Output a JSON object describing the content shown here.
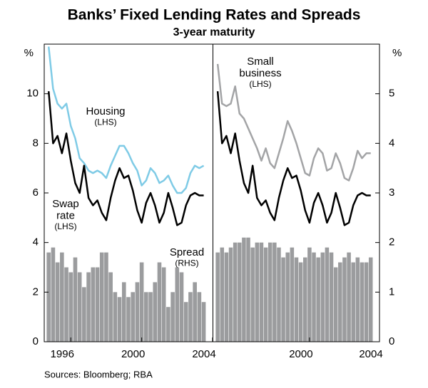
{
  "title": "Banks’ Fixed Lending Rates and Spreads",
  "subtitle": "3-year maturity",
  "source": "Sources: Bloomberg; RBA",
  "chart_data": [
    {
      "type": "line",
      "x": [
        1994.75,
        1995,
        1995.25,
        1995.5,
        1995.75,
        1996,
        1996.25,
        1996.5,
        1996.75,
        1997,
        1997.25,
        1997.5,
        1997.75,
        1998,
        1998.25,
        1998.5,
        1998.75,
        1999,
        1999.25,
        1999.5,
        1999.75,
        2000,
        2000.25,
        2000.5,
        2000.75,
        2001,
        2001.25,
        2001.5,
        2001.75,
        2002,
        2002.25,
        2002.5,
        2002.75,
        2003,
        2003.25,
        2003.5
      ],
      "xlim": [
        1994.5,
        2004
      ],
      "xticks": [
        1996,
        2000,
        2004
      ],
      "ylim": [
        0,
        12
      ],
      "yticks": [
        0,
        2,
        4,
        6,
        8,
        10
      ],
      "ylabel": "%",
      "y2lim": [
        0,
        6
      ],
      "series": [
        {
          "type": "bar",
          "axis": "y2",
          "label": [
            "Spread",
            "(RHS)"
          ],
          "color": "#9b9c9e",
          "values": [
            1.8,
            1.9,
            1.6,
            1.8,
            1.5,
            1.4,
            1.7,
            1.4,
            1.1,
            1.4,
            1.5,
            1.5,
            1.8,
            1.8,
            1.4,
            1.0,
            0.9,
            1.2,
            0.9,
            1.0,
            1.2,
            1.6,
            1.0,
            1.0,
            1.2,
            1.6,
            1.5,
            0.7,
            1.0,
            1.5,
            1.4,
            0.8,
            1.0,
            1.2,
            1.0,
            0.8
          ]
        },
        {
          "type": "line",
          "label": [
            "Housing",
            "(LHS)"
          ],
          "color": "#7fcbe6",
          "values": [
            11.9,
            10.2,
            9.6,
            9.4,
            9.6,
            8.7,
            8.2,
            7.4,
            7.2,
            6.9,
            6.8,
            6.9,
            6.8,
            6.6,
            7.1,
            7.5,
            7.9,
            7.9,
            7.6,
            7.2,
            6.9,
            6.3,
            6.5,
            7.0,
            6.8,
            6.4,
            6.5,
            6.7,
            6.3,
            6.0,
            6.0,
            6.2,
            6.8,
            7.1,
            7.0,
            7.1
          ]
        },
        {
          "type": "line",
          "label": [
            "Swap",
            "rate",
            "(LHS)"
          ],
          "color": "#000000",
          "values": [
            10.1,
            8.0,
            8.3,
            7.6,
            8.4,
            7.3,
            6.4,
            6.0,
            7.1,
            5.8,
            5.5,
            5.7,
            5.2,
            4.9,
            5.8,
            6.5,
            7.0,
            6.6,
            6.7,
            6.1,
            5.3,
            4.8,
            5.6,
            6.0,
            5.5,
            4.8,
            5.2,
            6.0,
            5.4,
            4.7,
            4.8,
            5.5,
            5.9,
            6.0,
            5.9,
            5.9
          ]
        }
      ]
    },
    {
      "type": "line",
      "x": [
        1994.75,
        1995,
        1995.25,
        1995.5,
        1995.75,
        1996,
        1996.25,
        1996.5,
        1996.75,
        1997,
        1997.25,
        1997.5,
        1997.75,
        1998,
        1998.25,
        1998.5,
        1998.75,
        1999,
        1999.25,
        1999.5,
        1999.75,
        2000,
        2000.25,
        2000.5,
        2000.75,
        2001,
        2001.25,
        2001.5,
        2001.75,
        2002,
        2002.25,
        2002.5,
        2002.75,
        2003,
        2003.25,
        2003.5
      ],
      "xlim": [
        1994.5,
        2004
      ],
      "xticks": [
        2000,
        2004
      ],
      "ylim": [
        0,
        12
      ],
      "y2lim": [
        0,
        6
      ],
      "y2ticks": [
        0,
        1,
        2,
        3,
        4,
        5
      ],
      "y2label": "%",
      "series": [
        {
          "type": "bar",
          "axis": "y2",
          "color": "#9b9c9e",
          "values": [
            1.8,
            1.9,
            1.8,
            1.9,
            2.0,
            2.0,
            2.1,
            2.1,
            1.9,
            2.0,
            2.0,
            1.9,
            2.0,
            2.0,
            1.9,
            1.7,
            1.8,
            1.9,
            1.7,
            1.6,
            1.7,
            1.9,
            1.8,
            1.7,
            1.8,
            1.9,
            1.8,
            1.5,
            1.6,
            1.7,
            1.8,
            1.6,
            1.7,
            1.6,
            1.6,
            1.7
          ]
        },
        {
          "type": "line",
          "label": [
            "Small",
            "business",
            "(LHS)"
          ],
          "color": "#a3a4a6",
          "values": [
            11.2,
            9.6,
            9.5,
            9.6,
            10.3,
            9.2,
            9.0,
            8.6,
            8.2,
            7.8,
            7.3,
            7.8,
            7.2,
            7.0,
            7.6,
            8.2,
            8.9,
            8.5,
            8.0,
            7.4,
            6.8,
            6.7,
            7.4,
            7.8,
            7.6,
            6.9,
            7.0,
            7.6,
            7.2,
            6.6,
            6.5,
            7.0,
            7.7,
            7.4,
            7.6,
            7.6
          ]
        },
        {
          "type": "line",
          "color": "#000000",
          "values": [
            10.1,
            8.0,
            8.3,
            7.6,
            8.4,
            7.3,
            6.4,
            6.0,
            7.1,
            5.8,
            5.5,
            5.7,
            5.2,
            4.9,
            5.8,
            6.5,
            7.0,
            6.6,
            6.7,
            6.1,
            5.3,
            4.8,
            5.6,
            6.0,
            5.5,
            4.8,
            5.2,
            6.0,
            5.4,
            4.7,
            4.8,
            5.5,
            5.9,
            6.0,
            5.9,
            5.9
          ]
        }
      ]
    }
  ]
}
